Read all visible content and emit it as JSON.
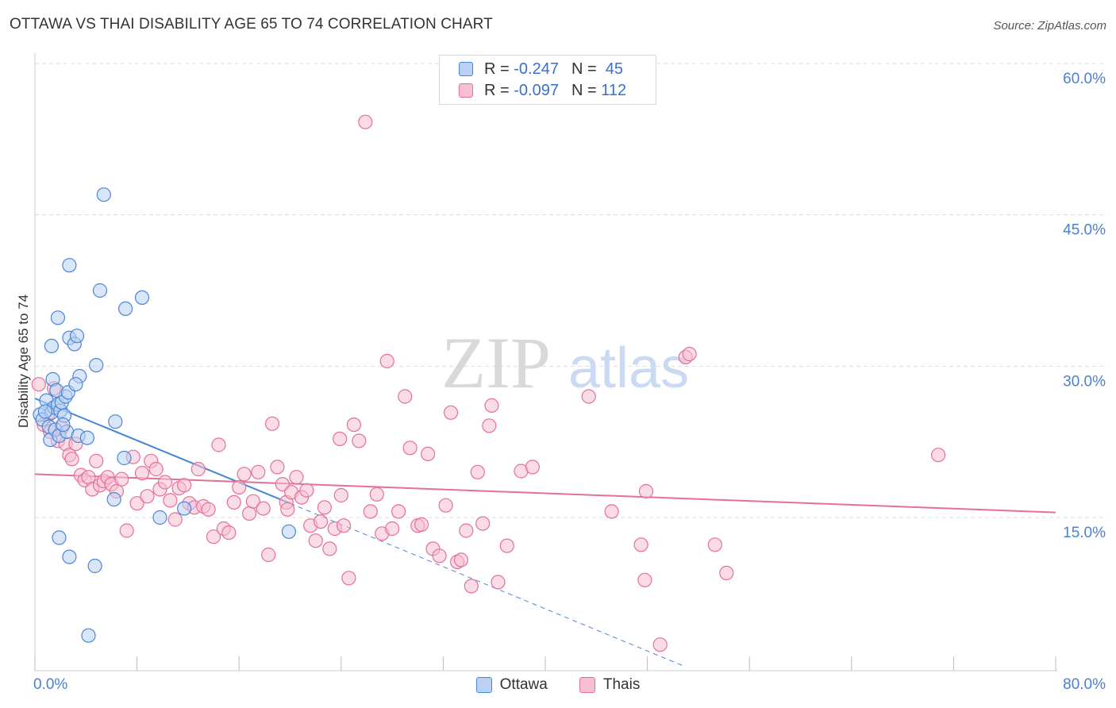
{
  "title": "OTTAWA VS THAI DISABILITY AGE 65 TO 74 CORRELATION CHART",
  "source": "Source: ZipAtlas.com",
  "watermark": {
    "zip": "ZIP",
    "atlas": "atlas"
  },
  "colors": {
    "ottawa": "#4a86d8",
    "ottawa_fill": "#b9d1f3",
    "thai": "#e56f98",
    "thai_fill": "#f6c0d2",
    "tick": "#4a7fd4",
    "grid": "#dddddd"
  },
  "legend": {
    "rows": [
      {
        "r_label": "R =",
        "r_value": "-0.247",
        "n_label": "N =",
        "n_value": "45"
      },
      {
        "r_label": "R =",
        "r_value": "-0.097",
        "n_label": "N =",
        "n_value": "112"
      }
    ]
  },
  "bottom_legend": {
    "ottawa": "Ottawa",
    "thai": "Thais"
  },
  "x_axis": {
    "min_label": "0.0%",
    "max_label": "80.0%"
  },
  "chart_data": {
    "type": "scatter",
    "title": "OTTAWA VS THAI DISABILITY AGE 65 TO 74 CORRELATION CHART",
    "xlabel": "",
    "ylabel": "Disability Age 65 to 74",
    "xlim": [
      0,
      80
    ],
    "ylim": [
      0,
      62
    ],
    "y_ticks": [
      15,
      30,
      45,
      60
    ],
    "y_tick_labels": [
      "15.0%",
      "30.0%",
      "45.0%",
      "60.0%"
    ],
    "x_tick_labels": [
      "0.0%",
      "80.0%"
    ],
    "series": [
      {
        "name": "Ottawa",
        "r": -0.247,
        "n": 45,
        "trend": {
          "x0": 0,
          "y0": 26.8,
          "x1": 20.0,
          "y1": 16.4,
          "dash_to_x": 51.0,
          "dash_to_y": 0.2
        },
        "points": [
          [
            0.4,
            25.2
          ],
          [
            0.6,
            24.7
          ],
          [
            0.9,
            26.6
          ],
          [
            1.1,
            24.0
          ],
          [
            1.2,
            22.7
          ],
          [
            1.3,
            25.4
          ],
          [
            1.5,
            25.9
          ],
          [
            1.6,
            23.7
          ],
          [
            1.8,
            26.2
          ],
          [
            1.9,
            23.1
          ],
          [
            2.0,
            25.6
          ],
          [
            2.1,
            26.4
          ],
          [
            2.3,
            25.1
          ],
          [
            2.4,
            27.0
          ],
          [
            2.5,
            23.5
          ],
          [
            3.4,
            23.1
          ],
          [
            0.8,
            25.5
          ],
          [
            1.4,
            28.7
          ],
          [
            1.7,
            27.6
          ],
          [
            2.2,
            24.2
          ],
          [
            2.6,
            27.4
          ],
          [
            3.5,
            29.0
          ],
          [
            4.1,
            22.9
          ],
          [
            1.3,
            32.0
          ],
          [
            1.8,
            34.8
          ],
          [
            2.7,
            32.8
          ],
          [
            3.1,
            32.2
          ],
          [
            3.3,
            33.0
          ],
          [
            3.2,
            28.2
          ],
          [
            4.8,
            30.1
          ],
          [
            5.1,
            37.5
          ],
          [
            2.7,
            40.0
          ],
          [
            5.4,
            47.0
          ],
          [
            7.1,
            35.7
          ],
          [
            8.4,
            36.8
          ],
          [
            6.3,
            24.5
          ],
          [
            7.0,
            20.9
          ],
          [
            6.2,
            16.8
          ],
          [
            9.8,
            15.0
          ],
          [
            11.7,
            15.9
          ],
          [
            19.9,
            13.6
          ],
          [
            1.9,
            13.0
          ],
          [
            2.7,
            11.1
          ],
          [
            4.7,
            10.2
          ],
          [
            4.2,
            3.3
          ]
        ]
      },
      {
        "name": "Thais",
        "r": -0.097,
        "n": 112,
        "trend": {
          "x0": 0,
          "y0": 19.3,
          "x1": 80,
          "y1": 15.5
        },
        "points": [
          [
            0.3,
            28.2
          ],
          [
            0.7,
            24.2
          ],
          [
            1.0,
            25.1
          ],
          [
            1.2,
            23.5
          ],
          [
            1.5,
            27.8
          ],
          [
            1.8,
            22.6
          ],
          [
            2.1,
            23.9
          ],
          [
            2.4,
            22.3
          ],
          [
            2.7,
            21.2
          ],
          [
            2.9,
            20.8
          ],
          [
            3.2,
            22.3
          ],
          [
            3.6,
            19.2
          ],
          [
            3.9,
            18.7
          ],
          [
            4.2,
            19.0
          ],
          [
            4.5,
            17.8
          ],
          [
            4.8,
            20.6
          ],
          [
            5.1,
            18.2
          ],
          [
            5.4,
            18.6
          ],
          [
            5.7,
            19.0
          ],
          [
            6.0,
            18.3
          ],
          [
            6.4,
            17.6
          ],
          [
            6.8,
            18.8
          ],
          [
            7.2,
            13.7
          ],
          [
            7.7,
            21.0
          ],
          [
            8.0,
            16.4
          ],
          [
            8.4,
            19.4
          ],
          [
            8.8,
            17.1
          ],
          [
            9.1,
            20.6
          ],
          [
            9.5,
            19.8
          ],
          [
            9.8,
            17.8
          ],
          [
            10.2,
            18.5
          ],
          [
            10.6,
            16.7
          ],
          [
            11.0,
            14.8
          ],
          [
            11.3,
            17.9
          ],
          [
            11.7,
            18.2
          ],
          [
            12.1,
            16.4
          ],
          [
            12.5,
            16.0
          ],
          [
            12.8,
            19.8
          ],
          [
            13.2,
            16.1
          ],
          [
            13.6,
            15.8
          ],
          [
            14.0,
            13.1
          ],
          [
            14.4,
            22.2
          ],
          [
            14.8,
            13.9
          ],
          [
            15.2,
            13.5
          ],
          [
            15.6,
            16.5
          ],
          [
            16.0,
            18.0
          ],
          [
            16.4,
            19.3
          ],
          [
            16.8,
            15.4
          ],
          [
            17.1,
            16.6
          ],
          [
            17.5,
            19.5
          ],
          [
            17.9,
            15.9
          ],
          [
            18.3,
            11.3
          ],
          [
            18.6,
            24.3
          ],
          [
            19.0,
            20.0
          ],
          [
            19.4,
            18.3
          ],
          [
            19.7,
            16.5
          ],
          [
            20.1,
            17.5
          ],
          [
            20.5,
            19.0
          ],
          [
            20.9,
            17.0
          ],
          [
            21.3,
            17.7
          ],
          [
            21.6,
            14.2
          ],
          [
            22.0,
            12.7
          ],
          [
            22.4,
            14.6
          ],
          [
            22.7,
            16.0
          ],
          [
            23.1,
            11.9
          ],
          [
            23.5,
            13.9
          ],
          [
            23.9,
            22.8
          ],
          [
            24.2,
            14.2
          ],
          [
            24.6,
            9.0
          ],
          [
            25.0,
            24.2
          ],
          [
            25.4,
            22.6
          ],
          [
            25.9,
            54.2
          ],
          [
            26.3,
            15.6
          ],
          [
            26.8,
            17.3
          ],
          [
            27.2,
            13.4
          ],
          [
            27.6,
            30.5
          ],
          [
            28.0,
            13.9
          ],
          [
            28.5,
            15.6
          ],
          [
            29.0,
            27.0
          ],
          [
            29.4,
            21.9
          ],
          [
            30.0,
            14.2
          ],
          [
            30.3,
            14.3
          ],
          [
            30.8,
            21.3
          ],
          [
            31.2,
            11.9
          ],
          [
            31.7,
            11.2
          ],
          [
            32.2,
            16.2
          ],
          [
            32.6,
            25.4
          ],
          [
            33.1,
            10.6
          ],
          [
            33.4,
            10.8
          ],
          [
            33.8,
            13.7
          ],
          [
            34.2,
            8.2
          ],
          [
            34.7,
            19.5
          ],
          [
            35.1,
            14.4
          ],
          [
            35.6,
            24.1
          ],
          [
            35.8,
            26.1
          ],
          [
            36.3,
            8.6
          ],
          [
            37.0,
            12.2
          ],
          [
            38.1,
            19.6
          ],
          [
            39.0,
            20.0
          ],
          [
            43.4,
            27.0
          ],
          [
            45.2,
            15.6
          ],
          [
            47.5,
            12.3
          ],
          [
            47.8,
            8.8
          ],
          [
            47.9,
            17.6
          ],
          [
            51.0,
            30.9
          ],
          [
            51.3,
            31.2
          ],
          [
            49.0,
            2.4
          ],
          [
            53.3,
            12.3
          ],
          [
            54.2,
            9.5
          ],
          [
            70.8,
            21.2
          ],
          [
            19.8,
            15.8
          ],
          [
            24.0,
            17.2
          ]
        ]
      }
    ]
  }
}
